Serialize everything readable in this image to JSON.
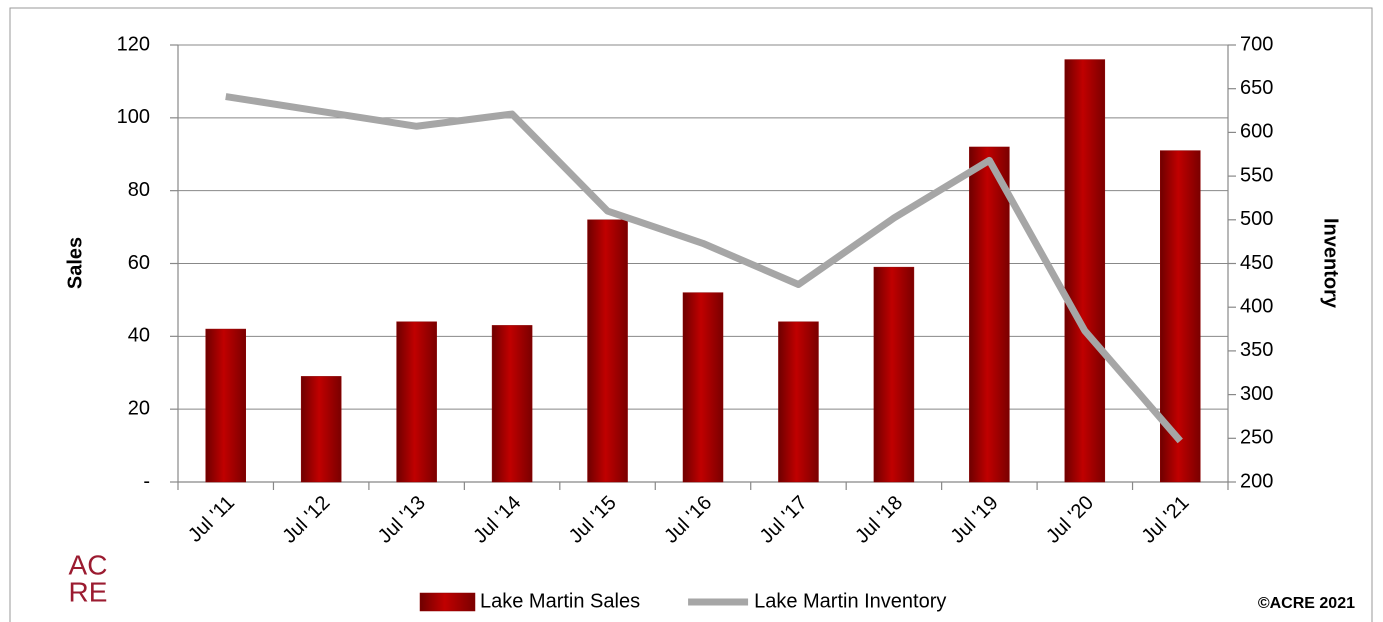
{
  "chart_data": {
    "type": "bar-line",
    "categories": [
      "Jul '11",
      "Jul '12",
      "Jul '13",
      "Jul '14",
      "Jul '15",
      "Jul '16",
      "Jul '17",
      "Jul '18",
      "Jul '19",
      "Jul '20",
      "Jul '21"
    ],
    "series": [
      {
        "name": "Lake Martin Sales",
        "type": "bar",
        "color": "#c00000",
        "values": [
          42,
          29,
          44,
          43,
          72,
          52,
          44,
          59,
          92,
          116,
          91
        ]
      },
      {
        "name": "Lake Martin Inventory",
        "type": "line",
        "axis": "y2",
        "color": "#a6a6a6",
        "values": [
          641,
          624,
          607,
          621,
          510,
          473,
          426,
          502,
          568,
          373,
          247
        ]
      }
    ],
    "ylabel": "Sales",
    "y2label": "Inventory",
    "ylim": [
      0,
      120
    ],
    "yticks": [
      {
        "value": 0,
        "label": "-"
      },
      20,
      40,
      60,
      80,
      100,
      120
    ],
    "y2lim": [
      200,
      700
    ],
    "y2ticks": [
      200,
      250,
      300,
      350,
      400,
      450,
      500,
      550,
      600,
      650,
      700
    ],
    "grid": true,
    "legend": "bottom"
  },
  "logo": [
    "AC",
    "RE"
  ],
  "copyright": "©ACRE 2021"
}
